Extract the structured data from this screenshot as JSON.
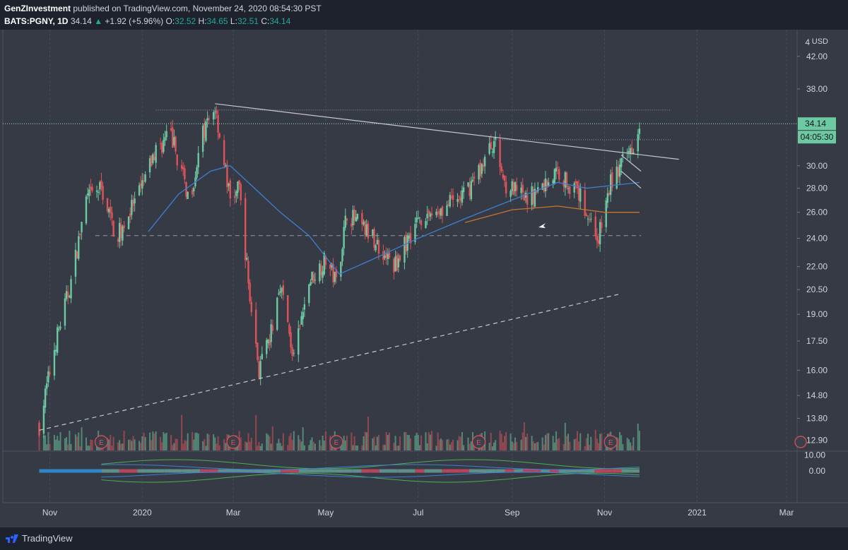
{
  "header": {
    "author": "GenZInvestment",
    "published_text": "published on TradingView.com, November 24, 2020 08:54:30 PST",
    "symbol": "BATS:PGNY, 1D",
    "last": "34.14",
    "change_arrow": "▲",
    "change": "+1.92 (+5.96%)",
    "open_label": "O:",
    "open": "32.52",
    "high_label": "H:",
    "high": "34.65",
    "low_label": "L:",
    "low": "32.51",
    "close_label": "C:",
    "close": "34.14"
  },
  "price_axis": {
    "currency": "USD",
    "top_label": "4",
    "ticks": [
      "42.00",
      "38.00",
      "34.14",
      "04:05:30",
      "30.00",
      "28.00",
      "26.00",
      "24.00",
      "22.00",
      "20.50",
      "19.00",
      "17.50",
      "16.00",
      "14.80",
      "13.80",
      "12.90"
    ],
    "last_price_badge": "34.14",
    "countdown_badge": "04:05:30"
  },
  "indicator_axis": {
    "ticks": [
      "10.00",
      "0.00"
    ]
  },
  "time_axis": {
    "labels": [
      "Nov",
      "2020",
      "Mar",
      "May",
      "Jul",
      "Sep",
      "Nov",
      "2021",
      "Mar"
    ]
  },
  "earnings_marker": "E",
  "footer": {
    "brand": "TradingView"
  },
  "colors": {
    "background": "#363a45",
    "up": "#6cc9a1",
    "down": "#e0535a",
    "ma_blue": "#3d7fd1",
    "ma_orange": "#c8762d",
    "trendline": "#c4c7cf",
    "badge_green": "#6cc9a1"
  },
  "chart_data": {
    "type": "candlestick",
    "symbol": "BATS:PGNY",
    "interval": "1D",
    "x_range": [
      "2019-10",
      "2021-03"
    ],
    "y_scale": "log",
    "y_range": [
      12.5,
      45
    ],
    "close_path": [
      {
        "date": "2019-10-25",
        "price": 13.5
      },
      {
        "date": "2019-11-05",
        "price": 17.5
      },
      {
        "date": "2019-11-15",
        "price": 21.0
      },
      {
        "date": "2019-11-25",
        "price": 27.0
      },
      {
        "date": "2019-12-05",
        "price": 28.0
      },
      {
        "date": "2019-12-15",
        "price": 24.0
      },
      {
        "date": "2019-12-30",
        "price": 27.5
      },
      {
        "date": "2020-01-10",
        "price": 31.5
      },
      {
        "date": "2020-01-20",
        "price": 33.0
      },
      {
        "date": "2020-02-01",
        "price": 27.0
      },
      {
        "date": "2020-02-10",
        "price": 33.0
      },
      {
        "date": "2020-02-18",
        "price": 36.0
      },
      {
        "date": "2020-02-28",
        "price": 27.0
      },
      {
        "date": "2020-03-05",
        "price": 28.0
      },
      {
        "date": "2020-03-12",
        "price": 20.0
      },
      {
        "date": "2020-03-18",
        "price": 16.0
      },
      {
        "date": "2020-03-25",
        "price": 17.5
      },
      {
        "date": "2020-04-01",
        "price": 21.0
      },
      {
        "date": "2020-04-10",
        "price": 16.5
      },
      {
        "date": "2020-04-20",
        "price": 21.0
      },
      {
        "date": "2020-05-01",
        "price": 22.5
      },
      {
        "date": "2020-05-08",
        "price": 21.0
      },
      {
        "date": "2020-05-15",
        "price": 26.0
      },
      {
        "date": "2020-06-01",
        "price": 24.0
      },
      {
        "date": "2020-06-15",
        "price": 22.0
      },
      {
        "date": "2020-07-01",
        "price": 25.5
      },
      {
        "date": "2020-07-20",
        "price": 26.5
      },
      {
        "date": "2020-08-01",
        "price": 27.5
      },
      {
        "date": "2020-08-12",
        "price": 30.0
      },
      {
        "date": "2020-08-20",
        "price": 32.5
      },
      {
        "date": "2020-08-27",
        "price": 28.5
      },
      {
        "date": "2020-09-10",
        "price": 27.0
      },
      {
        "date": "2020-09-20",
        "price": 28.0
      },
      {
        "date": "2020-10-01",
        "price": 29.5
      },
      {
        "date": "2020-10-15",
        "price": 27.5
      },
      {
        "date": "2020-10-28",
        "price": 24.0
      },
      {
        "date": "2020-11-05",
        "price": 28.5
      },
      {
        "date": "2020-11-12",
        "price": 30.0
      },
      {
        "date": "2020-11-20",
        "price": 32.2
      },
      {
        "date": "2020-11-24",
        "price": 34.14
      }
    ],
    "moving_average_blue": [
      {
        "date": "2020-01-05",
        "price": 24.5
      },
      {
        "date": "2020-01-25",
        "price": 27.5
      },
      {
        "date": "2020-02-15",
        "price": 29.5
      },
      {
        "date": "2020-02-28",
        "price": 30.0
      },
      {
        "date": "2020-03-15",
        "price": 28.0
      },
      {
        "date": "2020-04-01",
        "price": 26.0
      },
      {
        "date": "2020-04-20",
        "price": 24.2
      },
      {
        "date": "2020-05-10",
        "price": 21.5
      },
      {
        "date": "2020-06-01",
        "price": 22.5
      },
      {
        "date": "2020-07-01",
        "price": 24.0
      },
      {
        "date": "2020-08-01",
        "price": 25.5
      },
      {
        "date": "2020-09-01",
        "price": 27.0
      },
      {
        "date": "2020-10-01",
        "price": 28.5
      },
      {
        "date": "2020-10-20",
        "price": 28.0
      },
      {
        "date": "2020-11-24",
        "price": 28.5
      }
    ],
    "moving_average_orange": [
      {
        "date": "2020-08-01",
        "price": 25.2
      },
      {
        "date": "2020-09-01",
        "price": 26.2
      },
      {
        "date": "2020-10-01",
        "price": 26.5
      },
      {
        "date": "2020-11-01",
        "price": 26.0
      },
      {
        "date": "2020-11-24",
        "price": 26.0
      }
    ],
    "horizontal_levels": [
      {
        "price": 35.6,
        "style": "dotted",
        "from": "2020-01-10",
        "to": "2020-12-15"
      },
      {
        "price": 32.5,
        "style": "dotted",
        "from": "2020-08-20",
        "to": "2020-12-15"
      },
      {
        "price": 24.2,
        "style": "dashed",
        "from": "2019-12-01",
        "to": "2020-11-25"
      }
    ],
    "trendlines": [
      {
        "from": {
          "date": "2020-02-18",
          "price": 36.3
        },
        "to": {
          "date": "2020-12-20",
          "price": 30.6
        },
        "style": "solid"
      },
      {
        "from": {
          "date": "2019-10-25",
          "price": 13.3
        },
        "to": {
          "date": "2020-11-10",
          "price": 20.2
        },
        "style": "dashed"
      },
      {
        "from": {
          "date": "2020-11-12",
          "price": 31.0
        },
        "to": {
          "date": "2020-11-25",
          "price": 29.5
        },
        "style": "solid"
      },
      {
        "from": {
          "date": "2020-11-12",
          "price": 29.5
        },
        "to": {
          "date": "2020-11-25",
          "price": 28.0
        },
        "style": "solid"
      }
    ],
    "earnings_dates": [
      "2019-12-05",
      "2020-03-01",
      "2020-05-08",
      "2020-08-10",
      "2020-11-05"
    ],
    "last_price": 34.14,
    "indicator_pane": {
      "y_range": [
        -20,
        12
      ]
    }
  }
}
